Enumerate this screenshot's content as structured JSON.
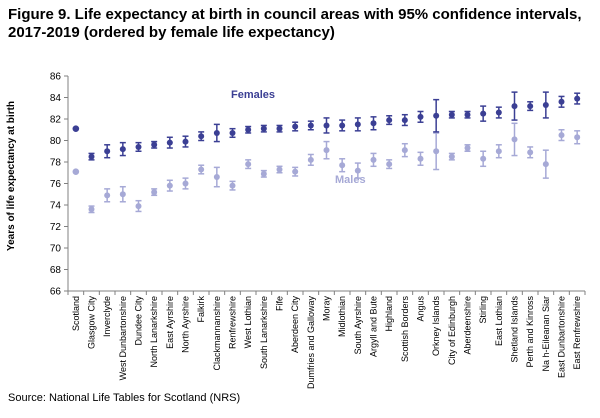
{
  "title": "Figure 9. Life expectancy at birth in council areas with 95% confidence intervals, 2017-2019 (ordered by female life expectancy)",
  "source": "Source: National Life Tables for Scotland (NRS)",
  "colors": {
    "females": "#3b3f94",
    "males": "#a6a9d6",
    "axis": "#808080",
    "text": "#000000"
  },
  "chart_data": {
    "type": "scatter",
    "title": "Figure 9. Life expectancy at birth in council areas with 95% confidence intervals, 2017-2019 (ordered by female life expectancy)",
    "ylabel": "Years of life expectancy at birth",
    "xlabel": "",
    "ylim": [
      66,
      86
    ],
    "yticks": [
      66,
      68,
      70,
      72,
      74,
      76,
      78,
      80,
      82,
      84,
      86
    ],
    "grid": false,
    "legend": "inline labels",
    "categories": [
      "Scotland",
      "Glasgow City",
      "Inverclyde",
      "West Dunbartonshire",
      "Dundee City",
      "North Lanarkshire",
      "East Ayrshire",
      "North Ayrshire",
      "Falkirk",
      "Clackmannanshire",
      "Renfrewshire",
      "West Lothian",
      "South Lanarkshire",
      "Fife",
      "Aberdeen City",
      "Dumfries and Galloway",
      "Moray",
      "Midlothian",
      "South Ayrshire",
      "Argyll and Bute",
      "Highland",
      "Scottish Borders",
      "Angus",
      "Orkney Islands",
      "City of Edinburgh",
      "Aberdeenshire",
      "Stirling",
      "East Lothian",
      "Shetland Islands",
      "Perth and Kinross",
      "Na h-Eileanan Siar",
      "East Dunbartonshire",
      "East Renfrewshire"
    ],
    "series": [
      {
        "name": "Females",
        "values": [
          81.1,
          78.5,
          79.0,
          79.2,
          79.4,
          79.6,
          79.8,
          79.9,
          80.4,
          80.7,
          80.7,
          81.0,
          81.1,
          81.1,
          81.3,
          81.4,
          81.4,
          81.4,
          81.5,
          81.6,
          81.9,
          81.9,
          82.2,
          82.3,
          82.4,
          82.4,
          82.5,
          82.6,
          83.2,
          83.2,
          83.3,
          83.6,
          83.9
        ],
        "lower": [
          81.0,
          78.2,
          78.4,
          78.6,
          79.0,
          79.3,
          79.3,
          79.4,
          80.0,
          79.9,
          80.3,
          80.7,
          80.8,
          80.8,
          80.9,
          81.0,
          80.7,
          80.9,
          80.9,
          81.0,
          81.5,
          81.4,
          81.7,
          80.8,
          82.1,
          82.1,
          81.8,
          82.1,
          81.9,
          82.8,
          82.1,
          83.1,
          83.4
        ],
        "upper": [
          81.2,
          78.8,
          79.6,
          79.8,
          79.8,
          79.9,
          80.3,
          80.4,
          80.8,
          81.5,
          81.1,
          81.3,
          81.4,
          81.4,
          81.7,
          81.8,
          82.1,
          81.9,
          82.1,
          82.2,
          82.3,
          82.4,
          82.7,
          83.8,
          82.7,
          82.7,
          83.2,
          83.1,
          84.5,
          83.6,
          84.5,
          84.1,
          84.4
        ]
      },
      {
        "name": "Males",
        "values": [
          77.1,
          73.6,
          74.9,
          75.0,
          73.9,
          75.2,
          75.8,
          76.0,
          77.3,
          76.6,
          75.8,
          77.8,
          76.9,
          77.3,
          77.1,
          78.2,
          79.1,
          77.7,
          77.2,
          78.2,
          77.8,
          79.1,
          78.3,
          79.0,
          78.5,
          79.3,
          78.3,
          79.0,
          80.1,
          78.9,
          77.8,
          80.5,
          80.3
        ]
      }
    ],
    "male_lower": [
      77.0,
      73.3,
      74.3,
      74.3,
      73.4,
      74.9,
      75.3,
      75.5,
      76.9,
      75.7,
      75.4,
      77.4,
      76.6,
      77.0,
      76.7,
      77.7,
      78.3,
      77.1,
      76.5,
      77.6,
      77.4,
      78.5,
      77.7,
      77.3,
      78.2,
      79.0,
      77.6,
      78.4,
      78.6,
      78.4,
      76.5,
      80.0,
      79.7
    ],
    "male_upper": [
      77.2,
      73.9,
      75.5,
      75.7,
      74.4,
      75.5,
      76.3,
      76.5,
      77.7,
      77.5,
      76.2,
      78.2,
      77.2,
      77.6,
      77.5,
      78.7,
      79.9,
      78.3,
      77.9,
      78.8,
      78.2,
      79.7,
      78.9,
      80.7,
      78.8,
      79.6,
      79.0,
      79.6,
      81.6,
      79.4,
      79.1,
      81.0,
      80.9
    ]
  }
}
